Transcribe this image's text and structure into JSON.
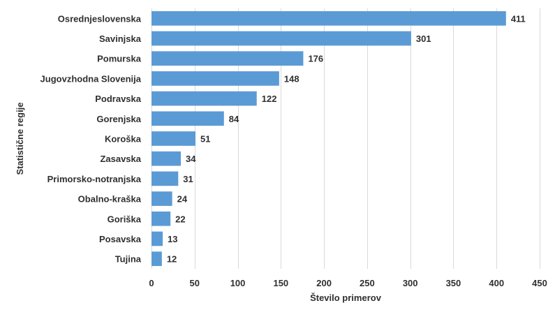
{
  "chart_data": {
    "type": "bar",
    "orientation": "horizontal",
    "categories": [
      "Osrednjeslovenska",
      "Savinjska",
      "Pomurska",
      "Jugovzhodna Slovenija",
      "Podravska",
      "Gorenjska",
      "Koroška",
      "Zasavska",
      "Primorsko-notranjska",
      "Obalno-kraška",
      "Goriška",
      "Posavska",
      "Tujina"
    ],
    "values": [
      411,
      301,
      176,
      148,
      122,
      84,
      51,
      34,
      31,
      24,
      22,
      13,
      12
    ],
    "title": "",
    "xlabel": "Število primerov",
    "ylabel": "Statistične regije",
    "xlim": [
      0,
      450
    ],
    "xticks": [
      0,
      50,
      100,
      150,
      200,
      250,
      300,
      350,
      400,
      450
    ],
    "grid": true,
    "legend": "none",
    "bar_color": "#5b9bd5",
    "gridline_color": "#d9d9d9",
    "text_color": "#2f2f2f"
  }
}
